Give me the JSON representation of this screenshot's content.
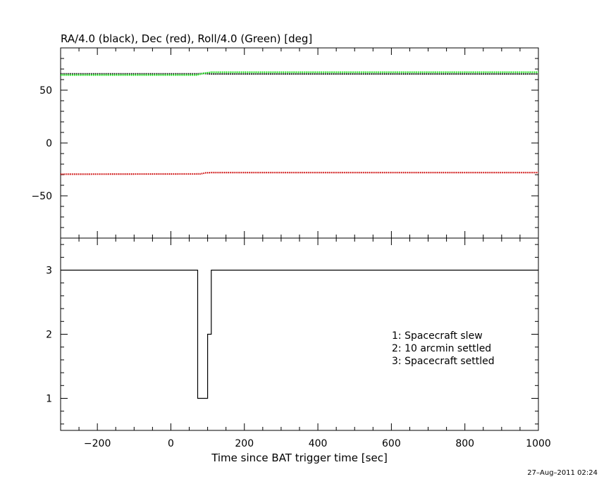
{
  "chart_data": [
    {
      "type": "line",
      "title": "RA/4.0 (black), Dec (red), Roll/4.0 (Green) [deg]",
      "xlabel": "",
      "ylabel": "",
      "xlim": [
        -300,
        1000
      ],
      "ylim": [
        -90,
        90
      ],
      "y_ticks": [
        50,
        0,
        -50
      ],
      "y_tick_labels": [
        "50",
        "0",
        "−50"
      ],
      "grid": false,
      "series": [
        {
          "name": "RA/4.0",
          "color": "#000000",
          "x": [
            -300,
            70,
            90,
            110,
            1000
          ],
          "y": [
            65.4,
            65.4,
            65.8,
            65.3,
            65.3
          ]
        },
        {
          "name": "Dec",
          "color": "#cc0000",
          "x": [
            -300,
            80,
            95,
            110,
            1000
          ],
          "y": [
            -29.5,
            -29.3,
            -28.3,
            -28.0,
            -28.0
          ]
        },
        {
          "name": "Roll/4.0",
          "color": "#00dd00",
          "x": [
            -300,
            70,
            90,
            110,
            1000
          ],
          "y": [
            64.3,
            64.3,
            66.0,
            67.0,
            67.0
          ]
        }
      ]
    },
    {
      "type": "line",
      "xlabel": "Time since BAT trigger time [sec]",
      "ylabel": "",
      "xlim": [
        -300,
        1000
      ],
      "ylim": [
        0.5,
        3.5
      ],
      "x_ticks": [
        -200,
        0,
        200,
        400,
        600,
        800,
        1000
      ],
      "x_tick_labels": [
        "−200",
        "0",
        "200",
        "400",
        "600",
        "800",
        "1000"
      ],
      "y_ticks": [
        3,
        2,
        1
      ],
      "y_tick_labels": [
        "3",
        "2",
        "1"
      ],
      "grid": false,
      "series": [
        {
          "color": "#000000",
          "step": true,
          "x": [
            -300,
            73,
            100,
            110,
            1000
          ],
          "y": [
            3,
            1,
            2,
            3,
            3
          ]
        }
      ],
      "annotations": [
        "1: Spacecraft slew",
        "2: 10 arcmin settled",
        "3: Spacecraft settled"
      ]
    }
  ],
  "footer": {
    "timestamp": "27–Aug–2011 02:24"
  }
}
